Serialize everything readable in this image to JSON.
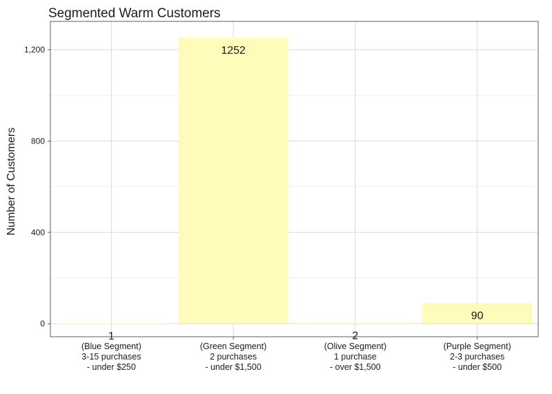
{
  "chart_data": {
    "type": "bar",
    "title": "Segmented Warm Customers",
    "xlabel": "",
    "ylabel": "Number of Customers",
    "ylim": [
      0,
      1300
    ],
    "yticks": [
      0,
      400,
      800,
      1200
    ],
    "ytick_labels": [
      "0",
      "400",
      "800",
      "1,200"
    ],
    "grid": true,
    "bar_color": "#fffcbb",
    "categories": [
      [
        "(Blue Segment)",
        "3-15 purchases",
        "- under $250"
      ],
      [
        "(Green Segment)",
        "2 purchases",
        "- under $1,500"
      ],
      [
        "(Olive Segment)",
        "1 purchase",
        "- over $1,500"
      ],
      [
        "(Purple Segment)",
        "2-3 purchases",
        "- under $500"
      ]
    ],
    "values": [
      1,
      1252,
      2,
      90
    ],
    "data_labels": [
      "1",
      "1252",
      "2",
      "90"
    ]
  }
}
